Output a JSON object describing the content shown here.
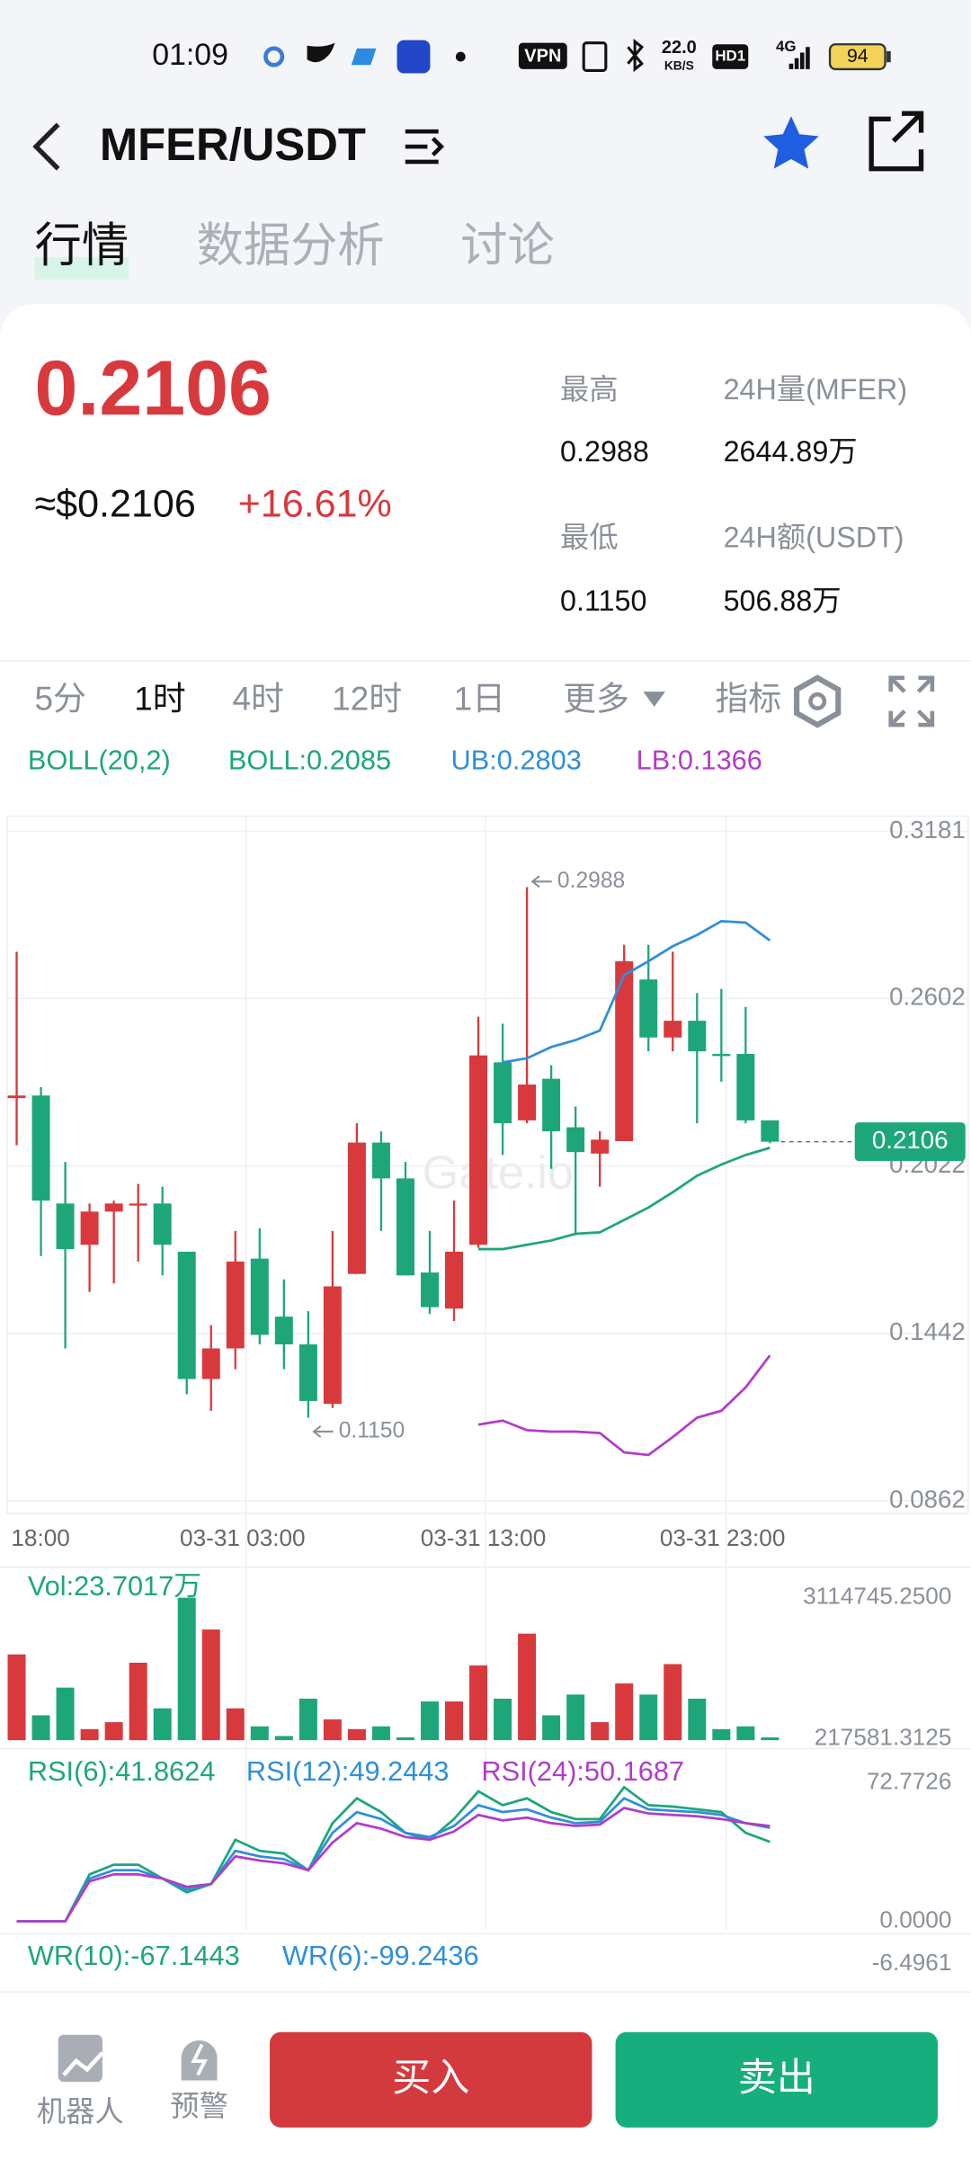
{
  "status_bar": {
    "time": "01:09",
    "network": "VPN",
    "speed": "22.0",
    "speed_unit": "KB/S",
    "hd": "HD1",
    "signal": "4G",
    "battery": "94"
  },
  "header": {
    "title": "MFER/USDT"
  },
  "tabs": [
    "行情",
    "数据分析",
    "讨论"
  ],
  "ticker": {
    "price": "0.2106",
    "usd_price": "≈$0.2106",
    "change": "+16.61%",
    "stats": [
      {
        "label": "最高",
        "value": "0.2988"
      },
      {
        "label": "24H量(MFER)",
        "value": "2644.89万"
      },
      {
        "label": "最低",
        "value": "0.1150"
      },
      {
        "label": "24H额(USDT)",
        "value": "506.88万"
      }
    ]
  },
  "intervals": [
    "5分",
    "1时",
    "4时",
    "12时",
    "1日",
    "更多",
    "指标"
  ],
  "watermark": "Gate.io",
  "chart_data": [
    {
      "type": "candlestick",
      "indicator": "BOLL(20,2)",
      "up_color": "#d8393d",
      "down_color": "#1ea67b",
      "open": [
        0.2257,
        0.2266,
        0.1892,
        0.1749,
        0.1864,
        0.1888,
        0.1892,
        0.1725,
        0.1284,
        0.139,
        0.1701,
        0.15,
        0.1404,
        0.1198,
        0.1648,
        0.2103,
        0.1979,
        0.1653,
        0.1528,
        0.1749,
        0.2381,
        0.218,
        0.2324,
        0.2156,
        0.2065,
        0.2108,
        0.2668,
        0.2467,
        0.2525,
        0.241,
        0.241,
        0.218
      ],
      "high": [
        0.2764,
        0.2295,
        0.2036,
        0.1892,
        0.1902,
        0.196,
        0.195,
        0.1725,
        0.1471,
        0.1797,
        0.1806,
        0.1629,
        0.1519,
        0.1797,
        0.217,
        0.2142,
        0.2036,
        0.1797,
        0.1902,
        0.2539,
        0.2515,
        0.2988,
        0.2371,
        0.2228,
        0.2142,
        0.2788,
        0.2788,
        0.2764,
        0.2621,
        0.2635,
        0.2573,
        0.218
      ],
      "low": [
        0.2094,
        0.171,
        0.139,
        0.1586,
        0.1615,
        0.1691,
        0.1643,
        0.1231,
        0.1174,
        0.1318,
        0.1404,
        0.1318,
        0.115,
        0.1184,
        0.1648,
        0.1797,
        0.1643,
        0.1509,
        0.1485,
        0.1739,
        0.206,
        0.217,
        0.2012,
        0.1782,
        0.195,
        0.2108,
        0.2419,
        0.2419,
        0.217,
        0.2314,
        0.217,
        0.2101
      ],
      "close": [
        0.2266,
        0.1902,
        0.1734,
        0.1864,
        0.1892,
        0.1892,
        0.1749,
        0.1284,
        0.139,
        0.1691,
        0.1437,
        0.1404,
        0.1208,
        0.1605,
        0.2103,
        0.1979,
        0.1643,
        0.1533,
        0.1725,
        0.2405,
        0.217,
        0.2304,
        0.2142,
        0.207,
        0.2113,
        0.2731,
        0.2467,
        0.2525,
        0.2419,
        0.2405,
        0.218,
        0.2106
      ],
      "series": [
        {
          "name": "BOLL:0.2085",
          "color": "#1ea67b",
          "values": [
            null,
            null,
            null,
            null,
            null,
            null,
            null,
            null,
            null,
            null,
            null,
            null,
            null,
            null,
            null,
            null,
            null,
            null,
            null,
            0.1734,
            0.1734,
            0.1749,
            0.1764,
            0.1787,
            0.1792,
            0.1835,
            0.1878,
            0.1931,
            0.1988,
            0.2027,
            0.206,
            0.2085
          ]
        },
        {
          "name": "UB:0.2803",
          "color": "#2f8fd8",
          "values": [
            null,
            null,
            null,
            null,
            null,
            null,
            null,
            null,
            null,
            null,
            null,
            null,
            null,
            null,
            null,
            null,
            null,
            null,
            null,
            null,
            0.2381,
            0.2395,
            0.2434,
            0.2458,
            0.2491,
            0.2683,
            0.2731,
            0.2783,
            0.2822,
            0.287,
            0.2865,
            0.2803
          ]
        },
        {
          "name": "LB:0.1366",
          "color": "#b13cc9",
          "values": [
            null,
            null,
            null,
            null,
            null,
            null,
            null,
            null,
            null,
            null,
            null,
            null,
            null,
            null,
            null,
            null,
            null,
            null,
            null,
            0.1126,
            0.114,
            0.1107,
            0.1102,
            0.1102,
            0.1097,
            0.103,
            0.1021,
            0.1083,
            0.115,
            0.1174,
            0.1255,
            0.1366
          ]
        }
      ],
      "last_price": 0.2106,
      "ylim": [
        0.0862,
        0.3181
      ],
      "yticks": [
        0.3181,
        0.2602,
        0.2022,
        0.1442,
        0.0862
      ],
      "xtick_labels": [
        "18:00",
        "03-31 03:00",
        "03-31 13:00",
        "03-31 23:00"
      ],
      "grid": true
    },
    {
      "type": "bar",
      "name": "Vol:23.7017万",
      "values": [
        1950225,
        700449,
        1268529,
        416409,
        558429,
        1779801,
        842469,
        3114745,
        2461497,
        842469,
        473217,
        274389,
        1041297,
        615237,
        416409,
        473217,
        217581,
        984489,
        984489,
        1722993,
        1041297,
        2376285,
        700449,
        1126509,
        558429,
        1353741,
        1126509,
        1751397,
        1041297,
        416409,
        473217,
        237017
      ],
      "ylim": [
        217581.3125,
        3114745.25
      ],
      "yticks": [
        {
          "value": 3114745.25,
          "label": "3114745.2500"
        },
        217581.3125
      ]
    },
    {
      "type": "line",
      "series": [
        {
          "name": "RSI(6):41.8624",
          "color": "#1ea67b",
          "values": [
            0,
            0,
            0,
            24.74,
            29.84,
            29.84,
            22.56,
            15.28,
            19.65,
            42.94,
            37.11,
            35.66,
            26.93,
            51.67,
            64.77,
            57.49,
            46.57,
            42.94,
            53.85,
            68.41,
            61.13,
            64.77,
            57.49,
            53.85,
            53.85,
            70.59,
            61.13,
            60.4,
            58.95,
            57.49,
            46.57,
            41.8624
          ]
        },
        {
          "name": "RSI(12):49.2443",
          "color": "#2f8fd8",
          "values": [
            0,
            0,
            0,
            22.56,
            26.93,
            26.93,
            22.56,
            16.74,
            19.65,
            37.11,
            34.2,
            32.75,
            26.93,
            46.57,
            57.49,
            53.85,
            46.57,
            44.39,
            50.21,
            61.13,
            57.49,
            58.95,
            54.58,
            51.67,
            52.4,
            64.77,
            58.95,
            58.22,
            57.49,
            56.03,
            51.67,
            49.2443
          ]
        },
        {
          "name": "RSI(24):50.1687",
          "color": "#b13cc9",
          "values": [
            0,
            0,
            0,
            21.1,
            24.74,
            24.74,
            22.56,
            18.19,
            19.65,
            34.2,
            32.02,
            30.56,
            26.93,
            41.48,
            51.67,
            48.76,
            44.39,
            42.94,
            47.3,
            56.03,
            53.12,
            54.58,
            51.67,
            50.21,
            50.94,
            59.67,
            56.76,
            56.03,
            55.31,
            53.85,
            51.67,
            50.1687
          ]
        }
      ],
      "ylim": [
        0,
        72.7726
      ],
      "yticks": [
        72.7726,
        {
          "value": 0,
          "label": "0.0000"
        }
      ]
    }
  ],
  "wr": {
    "labels": [
      "WR(10):-67.1443",
      "WR(6):-99.2436"
    ],
    "ytick": "-6.4961"
  },
  "bottom_bar": {
    "robot": "机器人",
    "alert": "预警",
    "buy": "买入",
    "sell": "卖出"
  }
}
